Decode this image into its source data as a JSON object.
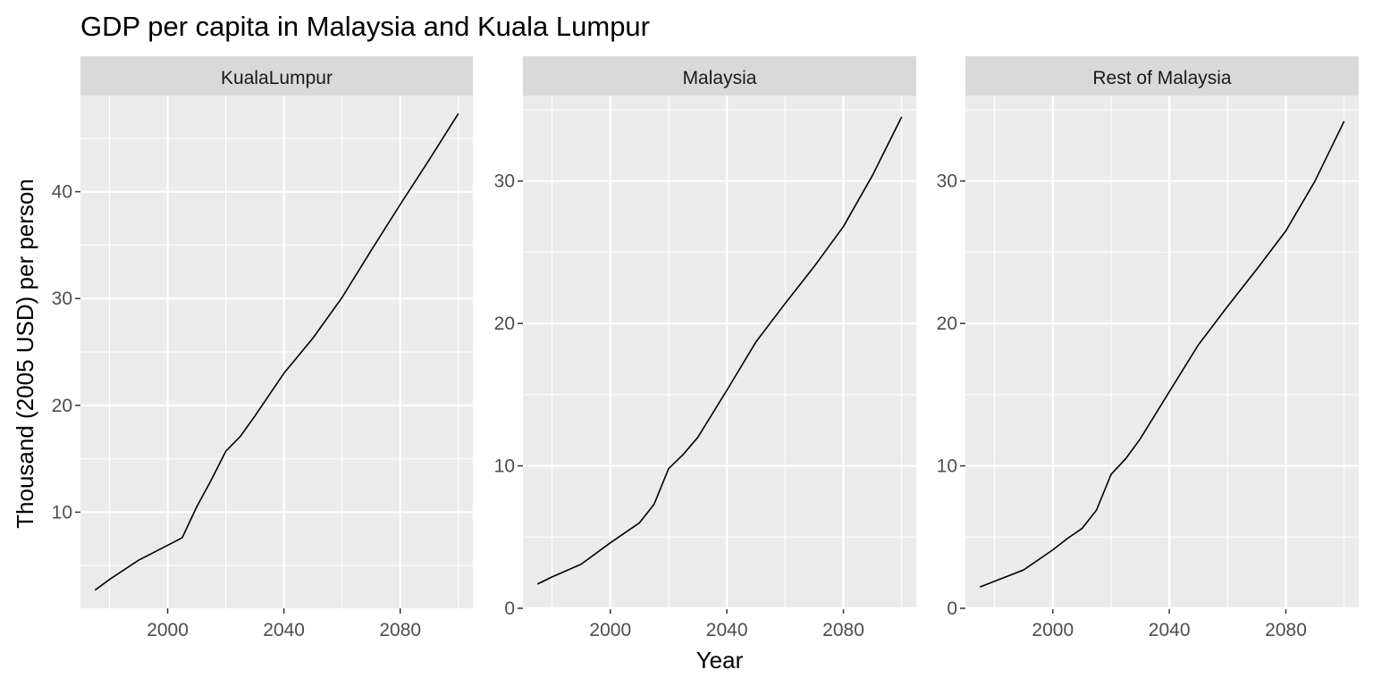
{
  "title": "GDP per capita in Malaysia and Kuala Lumpur",
  "xlabel": "Year",
  "ylabel": "Thousand (2005 USD) per person",
  "colors": {
    "panel_bg": "#EBEBEB",
    "strip_bg": "#D9D9D9",
    "grid": "#FFFFFF",
    "line": "#000000",
    "axis_text": "#4D4D4D",
    "text": "#000000"
  },
  "chart_data": [
    {
      "type": "line",
      "title": "KualaLumpur",
      "xlim": [
        1970,
        2105
      ],
      "ylim": [
        1,
        49
      ],
      "xticks": [
        2000,
        2040,
        2080
      ],
      "yticks": [
        10,
        20,
        30,
        40
      ],
      "x": [
        1975,
        1980,
        1990,
        2000,
        2005,
        2010,
        2015,
        2020,
        2025,
        2030,
        2040,
        2050,
        2060,
        2070,
        2080,
        2090,
        2100
      ],
      "y": [
        2.7,
        3.7,
        5.5,
        6.9,
        7.6,
        10.5,
        13.0,
        15.7,
        17.1,
        19.0,
        23.0,
        26.3,
        30.1,
        34.5,
        38.8,
        43.0,
        47.3
      ]
    },
    {
      "type": "line",
      "title": "Malaysia",
      "xlim": [
        1970,
        2105
      ],
      "ylim": [
        0,
        36
      ],
      "xticks": [
        2000,
        2040,
        2080
      ],
      "yticks": [
        0,
        10,
        20,
        30
      ],
      "x": [
        1975,
        1980,
        1990,
        2000,
        2010,
        2015,
        2020,
        2025,
        2030,
        2040,
        2050,
        2060,
        2070,
        2080,
        2090,
        2100
      ],
      "y": [
        1.7,
        2.2,
        3.1,
        4.6,
        6.0,
        7.3,
        9.8,
        10.8,
        12.0,
        15.3,
        18.7,
        21.4,
        24.0,
        26.8,
        30.4,
        34.5
      ]
    },
    {
      "type": "line",
      "title": "Rest of Malaysia",
      "xlim": [
        1970,
        2105
      ],
      "ylim": [
        0,
        36
      ],
      "xticks": [
        2000,
        2040,
        2080
      ],
      "yticks": [
        0,
        10,
        20,
        30
      ],
      "x": [
        1975,
        1980,
        1990,
        2000,
        2005,
        2010,
        2015,
        2020,
        2025,
        2030,
        2040,
        2050,
        2060,
        2070,
        2080,
        2090,
        2100
      ],
      "y": [
        1.5,
        1.9,
        2.7,
        4.1,
        4.9,
        5.6,
        6.9,
        9.4,
        10.5,
        11.9,
        15.2,
        18.5,
        21.2,
        23.8,
        26.5,
        30.0,
        34.2
      ]
    }
  ]
}
